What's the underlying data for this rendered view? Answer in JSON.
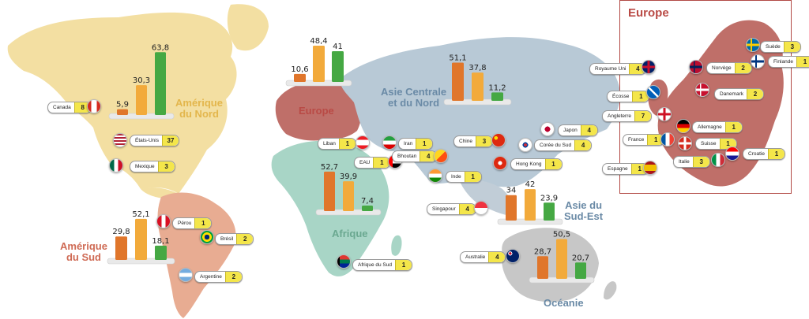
{
  "colors": {
    "north_america": "#f3dfa2",
    "south_america": "#e8ac92",
    "europe": "#bf6f69",
    "africa": "#a8d5c6",
    "asia_central_north": "#b8c9d6",
    "southeast_asia": "#c1cdd7",
    "oceania": "#c7c7c7",
    "bar_orange_dark": "#e0762b",
    "bar_orange_light": "#f2aa3b",
    "bar_green": "#45a843",
    "count_badge": "#f4e64a",
    "label_north_america": "#e3b64c",
    "label_south_america": "#cf6b55",
    "label_europe": "#b94a45",
    "label_asia": "#6a8aa6",
    "label_africa": "#6aa890"
  },
  "regions": {
    "north_america": "Amérique\ndu Nord",
    "south_america": "Amérique\ndu Sud",
    "europe": "Europe",
    "africa": "Afrique",
    "asia_central_north": "Asie Centrale\net du Nord",
    "southeast_asia": "Asie du\nSud-Est",
    "oceania": "Océanie",
    "europe_inset_title": "Europe"
  },
  "chart_data": [
    {
      "type": "bar",
      "region": "Amérique du Nord",
      "values": [
        5.9,
        30.3,
        63.8
      ],
      "labels": [
        "5,9",
        "30,3",
        "63,8"
      ]
    },
    {
      "type": "bar",
      "region": "Amérique du Sud",
      "values": [
        29.8,
        52.1,
        18.1
      ],
      "labels": [
        "29,8",
        "52,1",
        "18,1"
      ]
    },
    {
      "type": "bar",
      "region": "Europe",
      "values": [
        10.6,
        48.4,
        41
      ],
      "labels": [
        "10,6",
        "48,4",
        "41"
      ]
    },
    {
      "type": "bar",
      "region": "Afrique",
      "values": [
        52.7,
        39.9,
        7.4
      ],
      "labels": [
        "52,7",
        "39,9",
        "7,4"
      ]
    },
    {
      "type": "bar",
      "region": "Asie Centrale et du Nord",
      "values": [
        51.1,
        37.8,
        11.2
      ],
      "labels": [
        "51,1",
        "37,8",
        "11,2"
      ]
    },
    {
      "type": "bar",
      "region": "Asie du Sud-Est",
      "values": [
        34,
        42,
        23.9
      ],
      "labels": [
        "34",
        "42",
        "23,9"
      ]
    },
    {
      "type": "bar",
      "region": "Océanie",
      "values": [
        28.7,
        50.5,
        20.7
      ],
      "labels": [
        "28,7",
        "50,5",
        "20,7"
      ]
    }
  ],
  "countries": [
    {
      "name": "Canada",
      "count": "8",
      "flag": "canada"
    },
    {
      "name": "États-Unis",
      "count": "37",
      "flag": "usa"
    },
    {
      "name": "Mexique",
      "count": "3",
      "flag": "mexico"
    },
    {
      "name": "Pérou",
      "count": "1",
      "flag": "peru"
    },
    {
      "name": "Brésil",
      "count": "2",
      "flag": "brazil"
    },
    {
      "name": "Argentine",
      "count": "2",
      "flag": "argentina"
    },
    {
      "name": "Liban",
      "count": "1",
      "flag": "lebanon"
    },
    {
      "name": "Iran",
      "count": "1",
      "flag": "iran"
    },
    {
      "name": "EAU",
      "count": "1",
      "flag": "uae"
    },
    {
      "name": "Bhoutan",
      "count": "4",
      "flag": "bhutan"
    },
    {
      "name": "Inde",
      "count": "1",
      "flag": "india"
    },
    {
      "name": "Chine",
      "count": "3",
      "flag": "china"
    },
    {
      "name": "Hong Kong",
      "count": "1",
      "flag": "hongkong"
    },
    {
      "name": "Japon",
      "count": "4",
      "flag": "japan"
    },
    {
      "name": "Corée du Sud",
      "count": "4",
      "flag": "korea"
    },
    {
      "name": "Singapour",
      "count": "4",
      "flag": "singapore"
    },
    {
      "name": "Afrique du Sud",
      "count": "1",
      "flag": "southafrica"
    },
    {
      "name": "Australie",
      "count": "4",
      "flag": "australia"
    },
    {
      "name": "Royaume Uni",
      "count": "4",
      "flag": "uk"
    },
    {
      "name": "Écosse",
      "count": "1",
      "flag": "scotland"
    },
    {
      "name": "Angleterre",
      "count": "7",
      "flag": "england"
    },
    {
      "name": "France",
      "count": "1",
      "flag": "france"
    },
    {
      "name": "Espagne",
      "count": "1",
      "flag": "spain"
    },
    {
      "name": "Suède",
      "count": "3",
      "flag": "sweden"
    },
    {
      "name": "Norvège",
      "count": "2",
      "flag": "norway"
    },
    {
      "name": "Finlande",
      "count": "1",
      "flag": "finland"
    },
    {
      "name": "Danemark",
      "count": "2",
      "flag": "denmark"
    },
    {
      "name": "Allemagne",
      "count": "1",
      "flag": "germany"
    },
    {
      "name": "Suisse",
      "count": "1",
      "flag": "switzerland"
    },
    {
      "name": "Italie",
      "count": "3",
      "flag": "italy"
    },
    {
      "name": "Croatie",
      "count": "1",
      "flag": "croatia"
    }
  ]
}
